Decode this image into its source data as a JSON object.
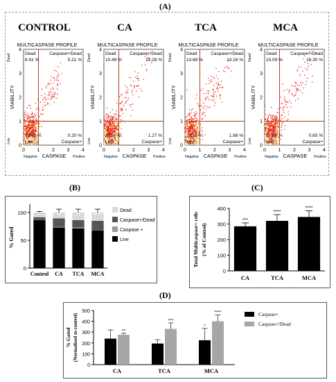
{
  "panel_A": {
    "label": "(A)",
    "profile_title": "MULTICASPASE PROFILE",
    "y_axis_label": "VIABILITY",
    "x_axis_label": "CASPASE",
    "quadrant_labels": {
      "dead": "Dead",
      "caspase_dead": "Caspase+/Dead",
      "live": "Live",
      "caspase": "Caspase+"
    },
    "y_side_labels": {
      "top": "Dead",
      "bottom": "Live"
    },
    "x_side_labels": {
      "left": "Negative",
      "right": "Positive"
    },
    "ticks": [
      "0",
      "1",
      "2",
      "3",
      "4"
    ],
    "plots": [
      {
        "title": "CONTROL",
        "dead": "8.41 %",
        "caspase_dead": "5.21 %",
        "live": "86.18 %",
        "caspase": "0.20 %"
      },
      {
        "title": "CA",
        "dead": "10.49 %",
        "caspase_dead": "15.28 %",
        "live": "72.97 %",
        "caspase": "1.27 %"
      },
      {
        "title": "TCA",
        "dead": "13.68 %",
        "caspase_dead": "13.16 %",
        "live": "71.28 %",
        "caspase": "1.88 %"
      },
      {
        "title": "MCA",
        "dead": "15.09 %",
        "caspase_dead": "16.30 %",
        "live": "67.96 %",
        "caspase": "0.65 %"
      }
    ]
  },
  "panel_B": {
    "label": "(B)"
  },
  "panel_C": {
    "label": "(C)"
  },
  "panel_D": {
    "label": "(D)"
  },
  "colors": {
    "dot": "#e8261a",
    "quadrant": "#c0392b",
    "live_box": "#f5f0b0",
    "black": "#000000",
    "dark_gray": "#555555",
    "gray": "#999999",
    "light_gray": "#d9d9d9"
  },
  "chart_data": [
    {
      "type": "bar",
      "stacked": true,
      "categories": [
        "Control",
        "CA",
        "TCA",
        "MCA"
      ],
      "ylabel": "% Gated",
      "yticks": [
        "0",
        "50",
        "100"
      ],
      "ylim": [
        0,
        110
      ],
      "series": [
        {
          "name": "Live",
          "values": [
            86.2,
            73.0,
            71.3,
            68.0
          ]
        },
        {
          "name": "Caspase +",
          "values": [
            0.2,
            1.3,
            1.9,
            0.7
          ]
        },
        {
          "name": "Caspase+/Dead",
          "values": [
            5.2,
            15.3,
            13.2,
            16.3
          ]
        },
        {
          "name": "Dead",
          "values": [
            8.4,
            10.5,
            13.7,
            15.1
          ]
        }
      ],
      "errors": [
        2,
        6,
        6,
        6
      ],
      "annotations": [
        "",
        "**",
        "**",
        "****"
      ],
      "legend": "right"
    },
    {
      "type": "bar",
      "categories": [
        "CA",
        "TCA",
        "MCA"
      ],
      "values": [
        285,
        320,
        345
      ],
      "errors": [
        22,
        40,
        40
      ],
      "annotations": [
        "***",
        "****",
        "****"
      ],
      "ylabel_line1": "Total Multicaspase+ cells",
      "ylabel_line2": "(% of Control)",
      "yticks": [
        "0",
        "100",
        "200",
        "300",
        "400"
      ],
      "ylim": [
        0,
        400
      ]
    },
    {
      "type": "bar",
      "categories": [
        "CA",
        "TCA",
        "MCA"
      ],
      "series": [
        {
          "name": "Caspase+",
          "values": [
            240,
            195,
            225
          ],
          "errors": [
            80,
            35,
            110
          ],
          "annotations": [
            "",
            "",
            "*"
          ]
        },
        {
          "name": "Caspase+/Dead",
          "values": [
            275,
            330,
            400
          ],
          "errors": [
            15,
            55,
            60
          ],
          "annotations": [
            "**",
            "***",
            "****"
          ]
        }
      ],
      "ylabel_line1": "% Gated",
      "ylabel_line2": "(Normalized to control)",
      "yticks": [
        "0",
        "100",
        "200",
        "300",
        "400",
        "500"
      ],
      "ylim": [
        0,
        500
      ],
      "legend": "right"
    }
  ]
}
